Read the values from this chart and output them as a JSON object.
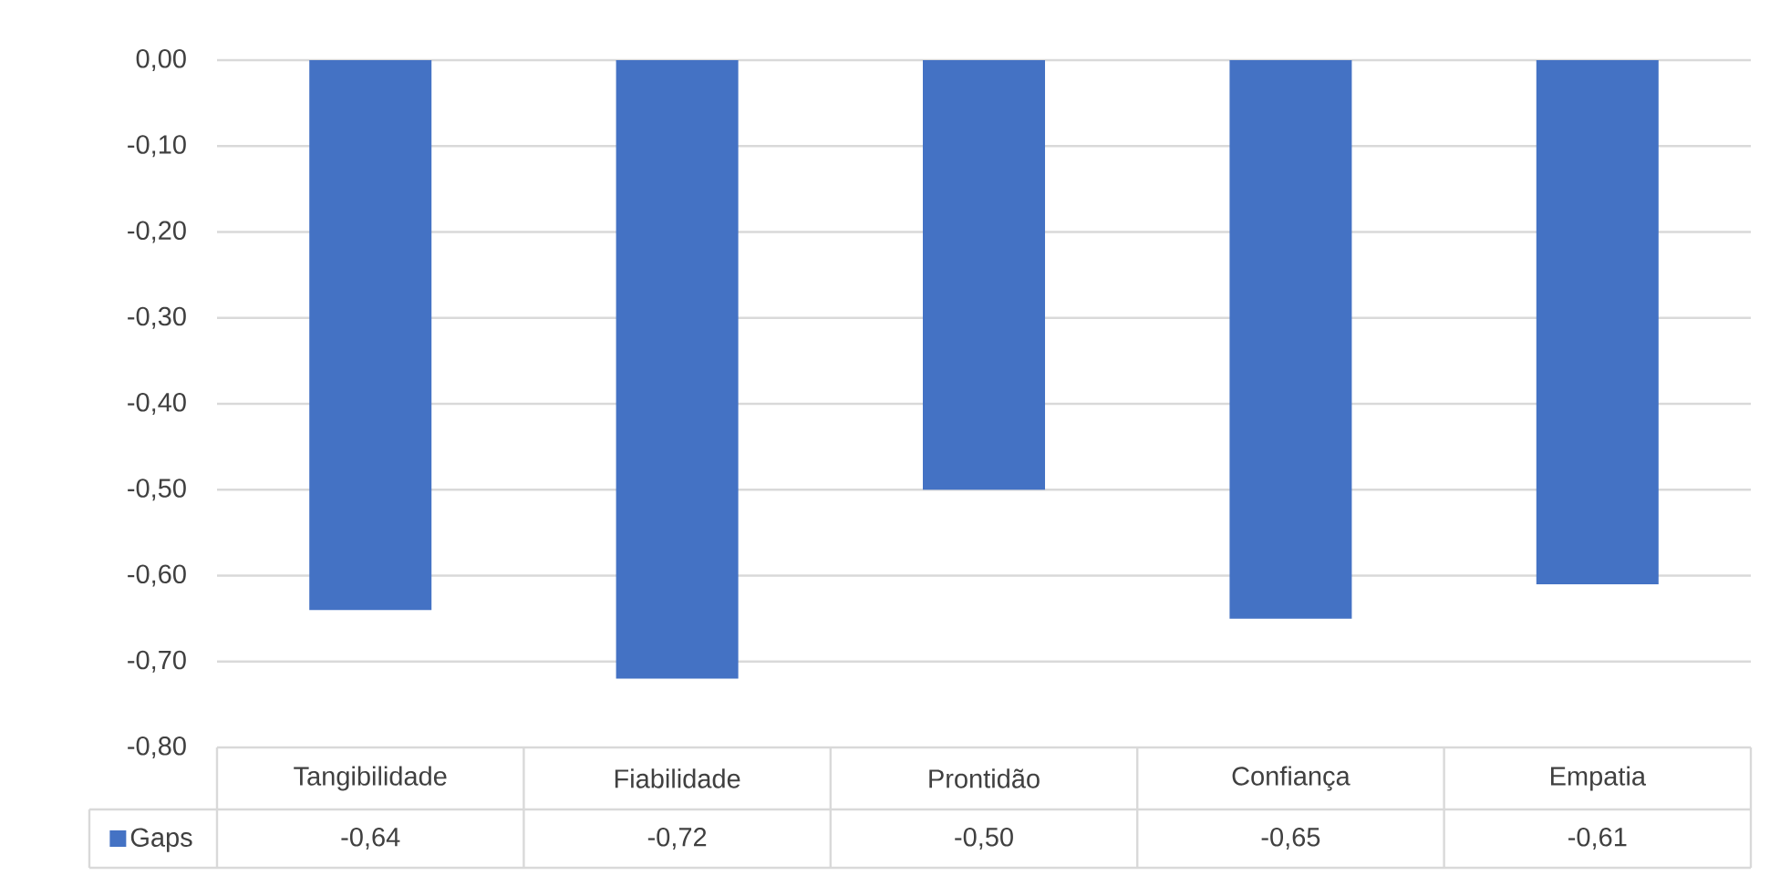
{
  "chart_data": {
    "type": "bar",
    "categories": [
      "Tangibilidade",
      "Fiabilidade",
      "Prontidão",
      "Confiança",
      "Empatia"
    ],
    "series": [
      {
        "name": "Gaps",
        "color": "#4472c4",
        "values": [
          -0.64,
          -0.72,
          -0.5,
          -0.65,
          -0.61
        ],
        "value_labels": [
          "-0,64",
          "-0,72",
          "-0,50",
          "-0,65",
          "-0,61"
        ]
      }
    ],
    "ylim": [
      -0.8,
      0
    ],
    "yticks": [
      {
        "value": 0,
        "label": "0,00"
      },
      {
        "value": -0.1,
        "label": "-0,10"
      },
      {
        "value": -0.2,
        "label": "-0,20"
      },
      {
        "value": -0.3,
        "label": "-0,30"
      },
      {
        "value": -0.4,
        "label": "-0,40"
      },
      {
        "value": -0.5,
        "label": "-0,50"
      },
      {
        "value": -0.6,
        "label": "-0,60"
      },
      {
        "value": -0.7,
        "label": "-0,70"
      },
      {
        "value": -0.8,
        "label": "-0,80"
      }
    ],
    "grid": "y",
    "legend": "bottom left"
  }
}
